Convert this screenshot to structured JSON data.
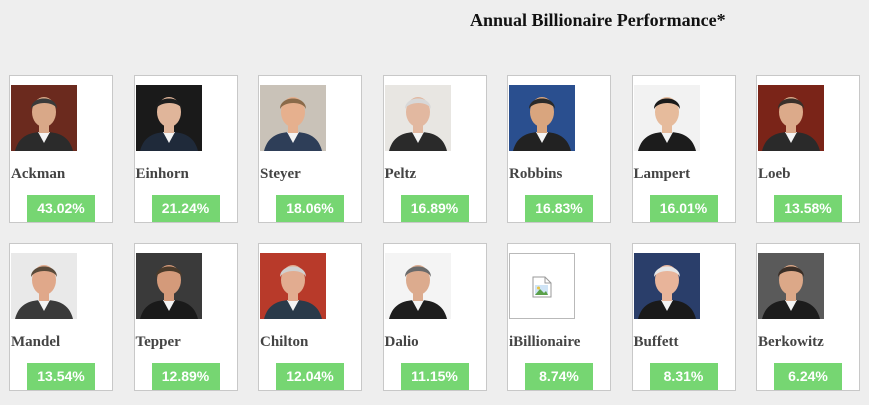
{
  "title": "Annual Billionaire Performance*",
  "colors": {
    "background": "#eeeeee",
    "card": "#ffffff",
    "badge": "#76d672"
  },
  "investors": [
    {
      "name": "Ackman",
      "performance": "43.02%",
      "photo": "portrait",
      "photo_bg": "#6b2a1e",
      "skin": "#d9a888",
      "hair": "#3a3a3a",
      "suit": "#2b2b2b"
    },
    {
      "name": "Einhorn",
      "performance": "21.24%",
      "photo": "portrait",
      "photo_bg": "#1a1a1a",
      "skin": "#e0b59a",
      "hair": "#1e1e1e",
      "suit": "#1f2a3a"
    },
    {
      "name": "Steyer",
      "performance": "18.06%",
      "photo": "portrait",
      "photo_bg": "#c9c2b8",
      "skin": "#e6b08e",
      "hair": "#8a6a4a",
      "suit": "#2e3e58"
    },
    {
      "name": "Peltz",
      "performance": "16.89%",
      "photo": "portrait",
      "photo_bg": "#e8e6e2",
      "skin": "#e2b8a0",
      "hair": "#d8d8d8",
      "suit": "#2a2a2a"
    },
    {
      "name": "Robbins",
      "performance": "16.83%",
      "photo": "portrait",
      "photo_bg": "#2a4f8f",
      "skin": "#d9a57e",
      "hair": "#2a2a2a",
      "suit": "#222222"
    },
    {
      "name": "Lampert",
      "performance": "16.01%",
      "photo": "portrait",
      "photo_bg": "#f2f2f2",
      "skin": "#e6bb9c",
      "hair": "#1a1a1a",
      "suit": "#1c1c1c"
    },
    {
      "name": "Loeb",
      "performance": "13.58%",
      "photo": "portrait",
      "photo_bg": "#7a2418",
      "skin": "#dcaa8a",
      "hair": "#3a302a",
      "suit": "#2a2a2a"
    },
    {
      "name": "Mandel",
      "performance": "13.54%",
      "photo": "portrait",
      "photo_bg": "#e9e9e9",
      "skin": "#e0a88a",
      "hair": "#5a4a3a",
      "suit": "#3a3a3a"
    },
    {
      "name": "Tepper",
      "performance": "12.89%",
      "photo": "portrait",
      "photo_bg": "#3a3a3a",
      "skin": "#d49a7a",
      "hair": "#4a3a2a",
      "suit": "#1a1a1a"
    },
    {
      "name": "Chilton",
      "performance": "12.04%",
      "photo": "portrait",
      "photo_bg": "#b83a2a",
      "skin": "#e2ac90",
      "hair": "#d0d0d0",
      "suit": "#2a3a4a"
    },
    {
      "name": "Dalio",
      "performance": "11.15%",
      "photo": "portrait",
      "photo_bg": "#f4f4f4",
      "skin": "#dcab8e",
      "hair": "#6a6a6a",
      "suit": "#1e1e1e"
    },
    {
      "name": "iBillionaire",
      "performance": "8.74%",
      "photo": "broken",
      "photo_bg": "#ffffff",
      "skin": "",
      "hair": "",
      "suit": ""
    },
    {
      "name": "Buffett",
      "performance": "8.31%",
      "photo": "portrait",
      "photo_bg": "#2a3e6a",
      "skin": "#e8b49a",
      "hair": "#e6e6e6",
      "suit": "#1a1a1a"
    },
    {
      "name": "Berkowitz",
      "performance": "6.24%",
      "photo": "portrait",
      "photo_bg": "#5a5a5a",
      "skin": "#dca888",
      "hair": "#3a2e26",
      "suit": "#1c1c1c"
    }
  ]
}
